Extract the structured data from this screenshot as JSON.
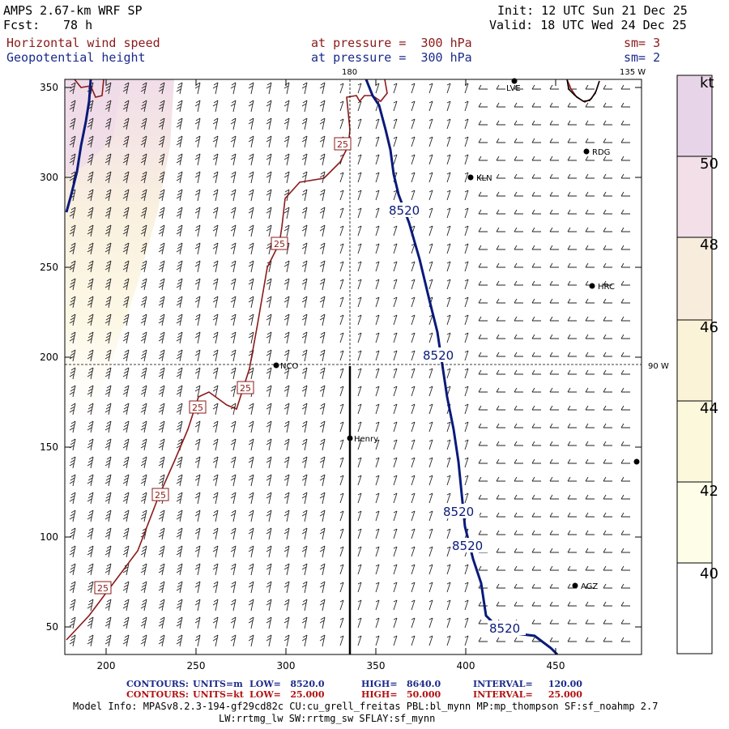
{
  "header": {
    "model": "AMPS 2.67-km WRF SP",
    "fcst_label": "Fcst:",
    "fcst_value": "78 h",
    "init": "Init: 12 UTC Sun 21 Dec 25",
    "valid": "Valid: 18 UTC Wed 24 Dec 25",
    "field1_name": "Horizontal wind speed",
    "field1_level": "at pressure =  300 hPa",
    "field1_sm": "sm= 3",
    "field2_name": "Geopotential height",
    "field2_level": "at pressure =  300 hPa",
    "field2_sm": "sm= 2"
  },
  "map": {
    "x_ticks": [
      "200",
      "250",
      "300",
      "350",
      "400",
      "450"
    ],
    "y_ticks": [
      "50",
      "100",
      "150",
      "200",
      "250",
      "300",
      "350"
    ],
    "lon_labels": [
      "180",
      "135 W",
      "90 W"
    ],
    "stations": [
      "LVE",
      "RDG",
      "KLN",
      "HRC",
      "NCO",
      "Henry",
      "AGZ"
    ],
    "height_contour_label": "8520",
    "speed_contour_label": "25",
    "colors": {
      "height_contour": "#0a1a7a",
      "speed_contour": "#8b1a1a"
    }
  },
  "colorbar": {
    "unit": "kt",
    "labels": [
      "50",
      "48",
      "46",
      "44",
      "42",
      "40"
    ],
    "bands": [
      "#e8d4e8",
      "#f2dfe8",
      "#f8ecdc",
      "#fbf3d8",
      "#fcf8dc",
      "#fdfde8",
      "#ffffff"
    ]
  },
  "footer": {
    "line1_label": "CONTOURS:",
    "line1_units": "UNITS=m",
    "line1_low": "LOW=   8520.0",
    "line1_high": "HIGH=   8640.0",
    "line1_interval": "INTERVAL=     120.00",
    "line2_label": "CONTOURS:",
    "line2_units": "UNITS=kt",
    "line2_low": "LOW=   25.000",
    "line2_high": "HIGH=   50.000",
    "line2_interval": "INTERVAL=     25.000",
    "model_info": "Model Info: MPASv8.2.3-194-gf29cd82c CU:cu_grell_freitas PBL:bl_mynn MP:mp_thompson SF:sf_noahmp 2.7",
    "model_info2": "LW:rrtmg_lw SW:rrtmg_sw SFLAY:sf_mynn"
  }
}
